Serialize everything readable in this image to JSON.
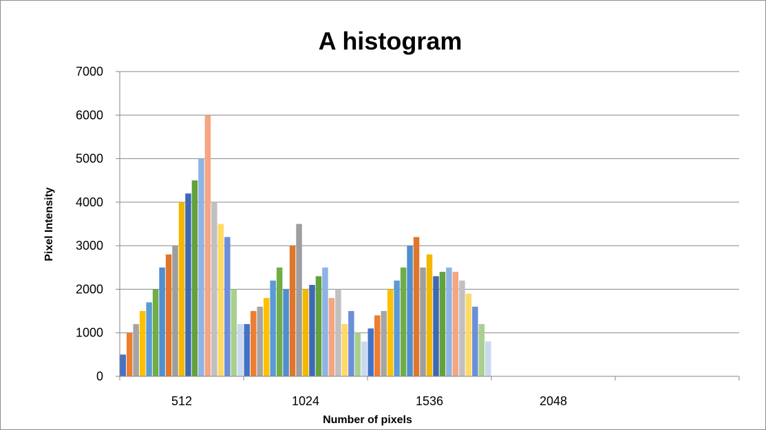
{
  "chart_data": {
    "type": "bar",
    "title": "A histogram",
    "xlabel": "Number of pixels",
    "ylabel": "Pixel Intensity",
    "ylim": [
      0,
      7000
    ],
    "y_ticks": [
      0,
      1000,
      2000,
      3000,
      4000,
      5000,
      6000,
      7000
    ],
    "categories": [
      "512",
      "1024",
      "1536",
      "2048",
      ""
    ],
    "grid": "horizontal",
    "legend": "none",
    "series": [
      {
        "color": "#4472C4",
        "values": [
          500,
          1200,
          1100,
          0,
          0
        ]
      },
      {
        "color": "#ED7D31",
        "values": [
          1000,
          1500,
          1400,
          0,
          0
        ]
      },
      {
        "color": "#A5A5A5",
        "values": [
          1200,
          1600,
          1500,
          0,
          0
        ]
      },
      {
        "color": "#FFC000",
        "values": [
          1500,
          1800,
          2000,
          0,
          0
        ]
      },
      {
        "color": "#5B9BD5",
        "values": [
          1700,
          2200,
          2200,
          0,
          0
        ]
      },
      {
        "color": "#70AD47",
        "values": [
          2000,
          2500,
          2500,
          0,
          0
        ]
      },
      {
        "color": "#4E8FD0",
        "values": [
          2500,
          2000,
          3000,
          0,
          0
        ]
      },
      {
        "color": "#E0762C",
        "values": [
          2800,
          3000,
          3200,
          0,
          0
        ]
      },
      {
        "color": "#9E9E9E",
        "values": [
          3000,
          3500,
          2500,
          0,
          0
        ]
      },
      {
        "color": "#F2B800",
        "values": [
          4000,
          2000,
          2800,
          0,
          0
        ]
      },
      {
        "color": "#3F69B5",
        "values": [
          4200,
          2100,
          2300,
          0,
          0
        ]
      },
      {
        "color": "#63A13E",
        "values": [
          4500,
          2300,
          2400,
          0,
          0
        ]
      },
      {
        "color": "#8EB4E3",
        "values": [
          5000,
          2500,
          2500,
          0,
          0
        ]
      },
      {
        "color": "#F4A582",
        "values": [
          6000,
          1800,
          2400,
          0,
          0
        ]
      },
      {
        "color": "#C0C0C0",
        "values": [
          4000,
          2000,
          2200,
          0,
          0
        ]
      },
      {
        "color": "#FFD966",
        "values": [
          3500,
          1200,
          1900,
          0,
          0
        ]
      },
      {
        "color": "#6C8FD8",
        "values": [
          3200,
          1500,
          1600,
          0,
          0
        ]
      },
      {
        "color": "#A9D08E",
        "values": [
          2000,
          1000,
          1200,
          0,
          0
        ]
      },
      {
        "color": "#C9D9F0",
        "values": [
          1200,
          800,
          800,
          0,
          0
        ]
      }
    ]
  }
}
